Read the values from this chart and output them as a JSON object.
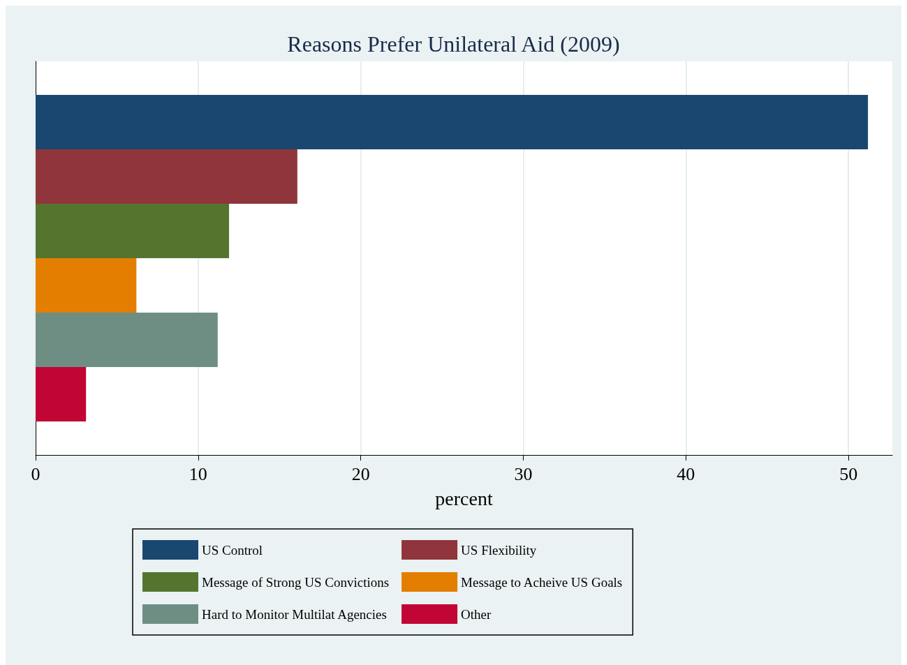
{
  "chart_data": {
    "type": "bar",
    "title": "Reasons Prefer Unilateral Aid (2009)",
    "xlabel": "percent",
    "orientation": "horizontal",
    "categories": [
      null
    ],
    "series": [
      {
        "name": "US Control",
        "color": "#1a476f",
        "values": [
          51.2
        ]
      },
      {
        "name": "US Flexibility",
        "color": "#90353b",
        "values": [
          16.1
        ]
      },
      {
        "name": "Message of Strong US Convictions",
        "color": "#55752f",
        "values": [
          11.9
        ]
      },
      {
        "name": "Message to Acheive US Goals",
        "color": "#e37e00",
        "values": [
          6.2
        ]
      },
      {
        "name": "Hard to Monitor Multilat Agencies",
        "color": "#6e8e84",
        "values": [
          11.2
        ]
      },
      {
        "name": "Other",
        "color": "#c10534",
        "values": [
          3.1
        ]
      }
    ],
    "xlim": [
      0,
      52.7
    ],
    "xticks": [
      0,
      10,
      20,
      30,
      40,
      50
    ],
    "grid": "x",
    "legend": "bottom"
  }
}
